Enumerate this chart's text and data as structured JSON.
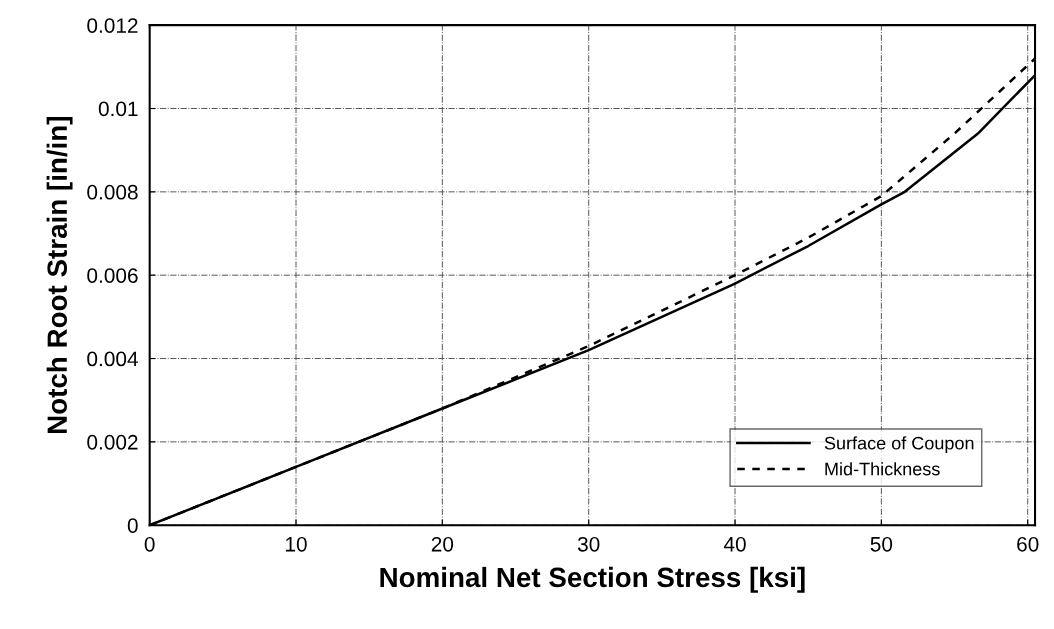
{
  "chart_data": {
    "type": "line",
    "xlabel": "Nominal Net Section Stress [ksi]",
    "ylabel": "Notch Root Strain [in/in]",
    "xlim": [
      0,
      60.5
    ],
    "xticks": [
      0,
      10,
      20,
      30,
      40,
      50,
      60
    ],
    "ylim": [
      0,
      0.012
    ],
    "yticks": [
      0,
      0.002,
      0.004,
      0.006,
      0.008,
      0.01,
      0.012
    ],
    "grid": true,
    "legend": "lower right",
    "series": [
      {
        "name": "Surface of Coupon",
        "color": "#000000",
        "line_style": "solid",
        "x": [
          0,
          10,
          20,
          30,
          40,
          45,
          50,
          51.6,
          56.6,
          60.5
        ],
        "values": [
          0,
          0.0014,
          0.0028,
          0.0042,
          0.0058,
          0.0067,
          0.0077,
          0.008,
          0.0094,
          0.0108
        ]
      },
      {
        "name": "Mid-Thickness",
        "color": "#000000",
        "line_style": "dashed",
        "x": [
          0,
          10,
          20,
          30,
          40,
          45,
          50,
          55,
          60.5
        ],
        "values": [
          0,
          0.0014,
          0.0028,
          0.0043,
          0.006,
          0.0069,
          0.0079,
          0.0094,
          0.0112
        ]
      }
    ]
  }
}
